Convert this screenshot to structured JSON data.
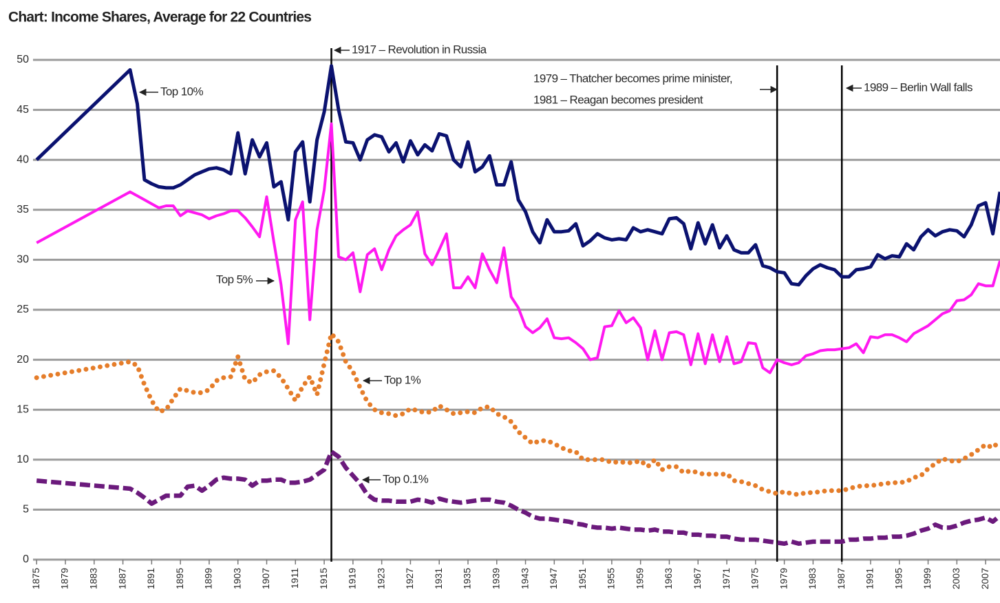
{
  "chart_data": {
    "type": "line",
    "title": "Chart: Income Shares, Average for 22 Countries",
    "x": [
      1875,
      1888,
      1889,
      1890,
      1891,
      1892,
      1893,
      1894,
      1895,
      1896,
      1897,
      1898,
      1899,
      1900,
      1901,
      1902,
      1903,
      1904,
      1905,
      1906,
      1907,
      1908,
      1909,
      1910,
      1911,
      1912,
      1913,
      1914,
      1915,
      1916,
      1917,
      1918,
      1919,
      1920,
      1921,
      1922,
      1923,
      1924,
      1925,
      1926,
      1927,
      1928,
      1929,
      1930,
      1931,
      1932,
      1933,
      1934,
      1935,
      1936,
      1937,
      1938,
      1939,
      1940,
      1941,
      1942,
      1943,
      1944,
      1945,
      1946,
      1947,
      1948,
      1949,
      1950,
      1951,
      1952,
      1953,
      1954,
      1955,
      1956,
      1957,
      1958,
      1959,
      1960,
      1961,
      1962,
      1963,
      1964,
      1965,
      1966,
      1967,
      1968,
      1969,
      1970,
      1971,
      1972,
      1973,
      1974,
      1975,
      1976,
      1977,
      1978,
      1979,
      1980,
      1981,
      1982,
      1983,
      1984,
      1985,
      1986,
      1987,
      1988,
      1989,
      1990,
      1991,
      1992,
      1993,
      1994,
      1995,
      1996,
      1997,
      1998,
      1999,
      2000,
      2001,
      2002,
      2003,
      2004,
      2005,
      2006,
      2007,
      2008,
      2009
    ],
    "series": [
      {
        "name": "Top 10%",
        "color": "#0b1270",
        "style": "solid",
        "values": [
          40,
          49,
          45.6,
          38.0,
          37.6,
          37.3,
          37.2,
          37.2,
          37.5,
          38.0,
          38.5,
          38.8,
          39.1,
          39.2,
          39.0,
          38.6,
          42.7,
          38.6,
          42.0,
          40.3,
          41.7,
          37.3,
          37.8,
          34.0,
          40.8,
          41.8,
          35.8,
          42.0,
          44.8,
          49.4,
          45.0,
          41.8,
          41.7,
          40.0,
          42.0,
          42.5,
          42.3,
          40.8,
          41.7,
          39.8,
          41.9,
          40.5,
          41.5,
          40.9,
          42.6,
          42.4,
          40.0,
          39.3,
          41.8,
          38.8,
          39.3,
          40.4,
          37.5,
          37.5,
          39.8,
          36.0,
          34.8,
          32.8,
          31.7,
          34.0,
          32.8,
          32.8,
          32.9,
          33.6,
          31.4,
          31.9,
          32.6,
          32.2,
          32.0,
          32.1,
          32.0,
          33.2,
          32.8,
          33.0,
          32.8,
          32.6,
          34.1,
          34.2,
          33.6,
          31.1,
          33.7,
          31.6,
          33.5,
          31.2,
          32.4,
          31.0,
          30.7,
          30.7,
          31.5,
          29.4,
          29.2,
          28.8,
          28.7,
          27.6,
          27.5,
          28.4,
          29.1,
          29.5,
          29.2,
          29.0,
          28.3,
          28.3,
          29.0,
          29.1,
          29.3,
          30.5,
          30.1,
          30.4,
          30.3,
          31.6,
          31.0,
          32.3,
          33.0,
          32.4,
          32.8,
          33.0,
          32.9,
          32.3,
          33.5,
          35.4,
          35.7,
          32.6,
          36.8
        ]
      },
      {
        "name": "Top 5%",
        "color": "#ff19f0",
        "style": "solid",
        "values": [
          31.7,
          36.8,
          36.4,
          36.0,
          35.6,
          35.2,
          35.4,
          35.4,
          34.4,
          34.9,
          34.7,
          34.5,
          34.1,
          34.4,
          34.6,
          34.9,
          34.9,
          34.2,
          33.3,
          32.3,
          36.3,
          31.8,
          27.5,
          21.6,
          34.0,
          35.8,
          24.0,
          33.0,
          37.0,
          43.6,
          30.3,
          30.0,
          30.7,
          26.8,
          30.5,
          31.1,
          29.0,
          31.0,
          32.4,
          33.0,
          33.5,
          34.8,
          30.6,
          29.5,
          31.0,
          32.6,
          27.2,
          27.2,
          28.3,
          27.2,
          30.6,
          29.0,
          27.7,
          31.2,
          26.3,
          25.2,
          23.3,
          22.7,
          23.2,
          24.1,
          22.2,
          22.1,
          22.2,
          21.7,
          21.1,
          20.0,
          20.2,
          23.3,
          23.4,
          24.9,
          23.7,
          24.2,
          23.2,
          20.0,
          22.9,
          20.0,
          22.7,
          22.8,
          22.5,
          19.5,
          22.6,
          19.6,
          22.5,
          19.8,
          22.3,
          19.6,
          19.8,
          21.7,
          21.6,
          19.2,
          18.7,
          20.0,
          19.7,
          19.5,
          19.7,
          20.4,
          20.6,
          20.9,
          21.0,
          21.0,
          21.1,
          21.2,
          21.6,
          20.7,
          22.3,
          22.2,
          22.5,
          22.5,
          22.2,
          21.8,
          22.6,
          23.0,
          23.4,
          24.0,
          24.6,
          24.9,
          25.9,
          26.0,
          26.5,
          27.6,
          27.4,
          27.4,
          29.9
        ]
      },
      {
        "name": "Top 1%",
        "color": "#e57d2a",
        "style": "dotted",
        "values": [
          18.2,
          19.8,
          19.4,
          17.5,
          15.9,
          14.8,
          15.0,
          16.1,
          17.1,
          16.9,
          16.7,
          16.7,
          17.0,
          17.9,
          18.2,
          18.3,
          20.3,
          18.0,
          17.7,
          18.5,
          18.8,
          18.9,
          18.2,
          17.1,
          15.9,
          17.3,
          18.3,
          16.5,
          19.6,
          22.6,
          21.8,
          19.8,
          18.8,
          17.2,
          15.8,
          15.0,
          14.7,
          14.6,
          14.4,
          14.6,
          15.1,
          14.9,
          14.7,
          14.8,
          15.4,
          15.0,
          14.6,
          14.7,
          14.8,
          14.7,
          15.2,
          15.3,
          14.6,
          14.3,
          13.8,
          12.8,
          12.2,
          11.6,
          11.9,
          11.9,
          11.6,
          11.2,
          10.9,
          10.8,
          10.0,
          10.0,
          10.0,
          10.0,
          9.7,
          9.8,
          9.7,
          9.7,
          9.9,
          9.3,
          10.0,
          9.0,
          9.3,
          9.3,
          8.7,
          8.9,
          8.7,
          8.5,
          8.6,
          8.5,
          8.6,
          7.9,
          7.8,
          7.6,
          7.4,
          7.0,
          6.8,
          6.6,
          6.8,
          6.6,
          6.5,
          6.7,
          6.7,
          6.8,
          6.9,
          6.9,
          6.9,
          7.1,
          7.3,
          7.4,
          7.4,
          7.5,
          7.6,
          7.7,
          7.7,
          7.8,
          8.2,
          8.4,
          9.1,
          9.6,
          10.1,
          9.9,
          9.8,
          10.1,
          10.5,
          11.0,
          11.5,
          11.2,
          11.9
        ]
      },
      {
        "name": "Top 0.1%",
        "color": "#6b1a7c",
        "style": "dashed",
        "values": [
          7.9,
          7.1,
          6.7,
          6.2,
          5.6,
          6.0,
          6.4,
          6.4,
          6.4,
          7.3,
          7.4,
          6.9,
          7.4,
          8.0,
          8.2,
          8.1,
          8.1,
          8.0,
          7.4,
          7.9,
          7.9,
          8.0,
          8.0,
          7.7,
          7.7,
          7.8,
          8.0,
          8.5,
          9.0,
          10.8,
          10.3,
          9.2,
          8.4,
          7.6,
          6.5,
          6.0,
          5.9,
          5.9,
          5.8,
          5.8,
          5.8,
          6.0,
          5.9,
          5.7,
          6.1,
          5.9,
          5.8,
          5.7,
          5.8,
          5.9,
          6.0,
          6.0,
          5.8,
          5.7,
          5.4,
          5.0,
          4.7,
          4.3,
          4.1,
          4.1,
          4.0,
          3.9,
          3.8,
          3.6,
          3.5,
          3.3,
          3.2,
          3.2,
          3.1,
          3.2,
          3.1,
          3.0,
          3.0,
          2.9,
          3.0,
          2.8,
          2.8,
          2.7,
          2.7,
          2.5,
          2.5,
          2.4,
          2.4,
          2.3,
          2.3,
          2.1,
          2.0,
          2.0,
          2.0,
          1.9,
          1.8,
          1.7,
          1.6,
          1.8,
          1.6,
          1.7,
          1.8,
          1.8,
          1.8,
          1.8,
          1.8,
          2.0,
          2.0,
          2.1,
          2.1,
          2.2,
          2.2,
          2.3,
          2.3,
          2.4,
          2.6,
          2.9,
          3.1,
          3.5,
          3.2,
          3.2,
          3.4,
          3.7,
          3.9,
          4.0,
          4.2,
          3.8,
          4.4
        ]
      }
    ],
    "events": [
      {
        "x": 1916,
        "labels": [
          "1917 – Revolution in Russia"
        ]
      },
      {
        "x": 1978,
        "labels": [
          "1979 – Thatcher becomes prime minister,",
          "1981 – Reagan becomes president"
        ]
      },
      {
        "x": 1987,
        "labels": [
          "1989 – Berlin Wall falls"
        ]
      }
    ],
    "xlim": [
      1874.5,
      2009
    ],
    "xticks": [
      1875,
      1879,
      1883,
      1887,
      1891,
      1895,
      1899,
      1903,
      1907,
      1911,
      1915,
      1919,
      1923,
      1927,
      1931,
      1935,
      1939,
      1943,
      1947,
      1951,
      1955,
      1959,
      1963,
      1967,
      1971,
      1975,
      1979,
      1983,
      1987,
      1991,
      1995,
      1999,
      2003,
      2007
    ],
    "ylim": [
      0,
      50
    ],
    "yticks": [
      0,
      5,
      10,
      15,
      20,
      25,
      30,
      35,
      40,
      45,
      50
    ],
    "grid": true
  }
}
